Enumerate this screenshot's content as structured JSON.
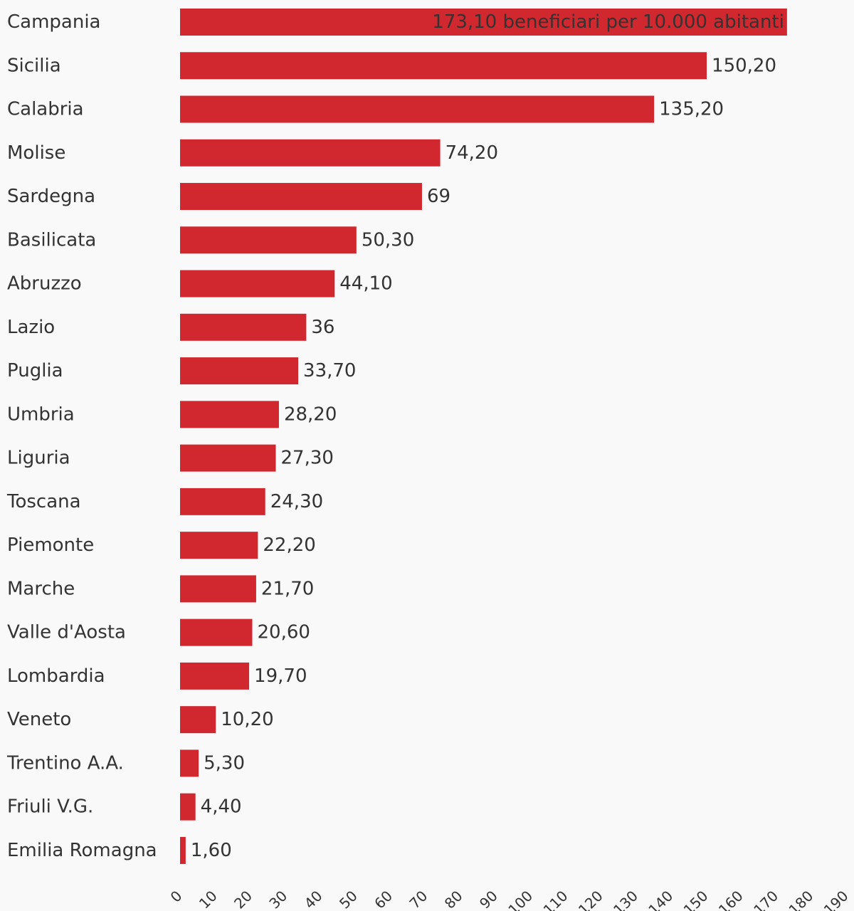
{
  "chart_data": {
    "type": "bar",
    "orientation": "horizontal",
    "categories": [
      "Campania",
      "Sicilia",
      "Calabria",
      "Molise",
      "Sardegna",
      "Basilicata",
      "Abruzzo",
      "Lazio",
      "Puglia",
      "Umbria",
      "Liguria",
      "Toscana",
      "Piemonte",
      "Marche",
      "Valle d'Aosta",
      "Lombardia",
      "Veneto",
      "Trentino A.A.",
      "Friuli V.G.",
      "Emilia Romagna"
    ],
    "values": [
      173.1,
      150.2,
      135.2,
      74.2,
      69,
      50.3,
      44.1,
      36,
      33.7,
      28.2,
      27.3,
      24.3,
      22.2,
      21.7,
      20.6,
      19.7,
      10.2,
      5.3,
      4.4,
      1.6
    ],
    "value_labels": [
      "173,10 beneficiari per 10.000 abitanti",
      "150,20",
      "135,20",
      "74,20",
      "69",
      "50,30",
      "44,10",
      "36",
      "33,70",
      "28,20",
      "27,30",
      "24,30",
      "22,20",
      "21,70",
      "20,60",
      "19,70",
      "10,20",
      "5,30",
      "4,40",
      "1,60"
    ],
    "xticks": [
      0,
      10,
      20,
      30,
      40,
      50,
      60,
      70,
      80,
      90,
      100,
      110,
      120,
      130,
      140,
      150,
      160,
      170,
      180,
      190
    ],
    "xlim": [
      0,
      190
    ],
    "title": "",
    "xlabel": "",
    "ylabel": "",
    "grid": false,
    "legend": "none",
    "bar_color": "#d0282e",
    "text_color": "#333333",
    "background": "#f9f9f9"
  }
}
